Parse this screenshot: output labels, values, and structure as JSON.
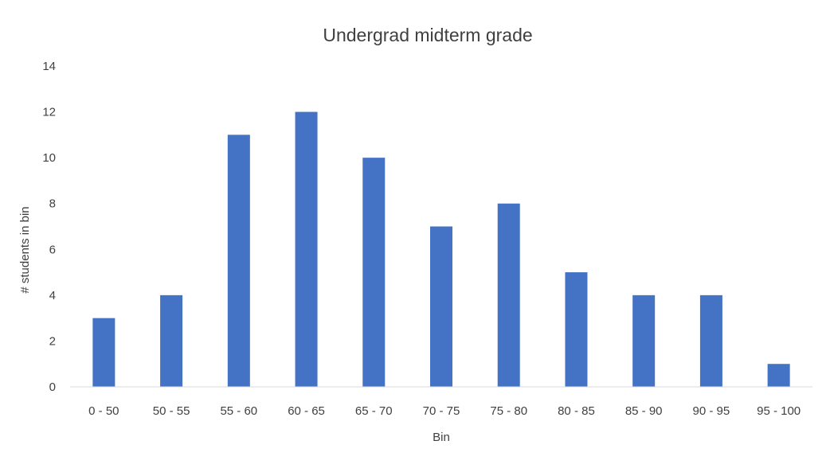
{
  "chart_data": {
    "type": "bar",
    "title": "Undergrad midterm grade",
    "xlabel": "Bin",
    "ylabel": "# students in bin",
    "categories": [
      "0 - 50",
      "50 - 55",
      "55 - 60",
      "60 - 65",
      "65 - 70",
      "70 - 75",
      "75 - 80",
      "80 - 85",
      "85 - 90",
      "90 - 95",
      "95 - 100"
    ],
    "values": [
      3,
      4,
      11,
      12,
      10,
      7,
      8,
      5,
      4,
      4,
      1
    ],
    "ylim": [
      0,
      14
    ],
    "yticks": [
      "0",
      "2",
      "4",
      "6",
      "8",
      "10",
      "12",
      "14"
    ],
    "grid": false,
    "legend": "none",
    "bar_color": "#4472c4"
  }
}
